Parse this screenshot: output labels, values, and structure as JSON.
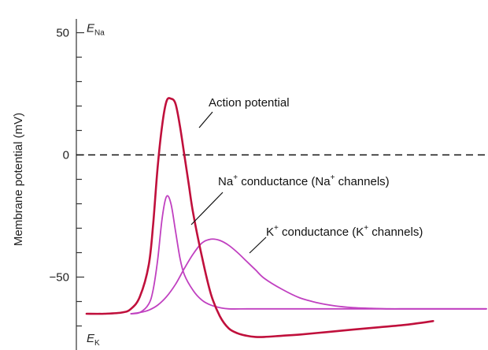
{
  "chart_data": {
    "type": "line",
    "title": "",
    "xlabel": "",
    "ylabel": "Membrane potential (mV)",
    "ylim": [
      -75,
      55
    ],
    "xlim": [
      0,
      4.5
    ],
    "y_ticks": [
      50,
      0,
      -50
    ],
    "y_tick_labels": [
      "50",
      "0",
      "−50"
    ],
    "grid": false,
    "x_axis_shown": false,
    "reference_levels": [
      {
        "id": "ENa",
        "symbol": "E",
        "subscript": "Na",
        "y": 52
      },
      {
        "id": "EK",
        "symbol": "E",
        "subscript": "K",
        "y": -75
      }
    ],
    "zero_line": {
      "y": 0,
      "style": "dashed"
    },
    "series": [
      {
        "name": "Action potential",
        "color": "#c0103c",
        "x": [
          0.0,
          0.2,
          0.4,
          0.5,
          0.6,
          0.7,
          0.75,
          0.8,
          0.85,
          0.9,
          0.95,
          1.0,
          1.05,
          1.1,
          1.15,
          1.2,
          1.3,
          1.4,
          1.5,
          1.6,
          1.7,
          1.8,
          1.9,
          2.0,
          2.2,
          2.4,
          2.7,
          3.0,
          3.3,
          3.6,
          3.9
        ],
        "values": [
          -65,
          -65,
          -64.5,
          -63,
          -58,
          -45,
          -28,
          -5,
          12,
          22,
          23,
          21,
          12,
          0,
          -12,
          -24,
          -42,
          -57,
          -66,
          -71,
          -73,
          -74,
          -74.5,
          -74.5,
          -74,
          -73.5,
          -72.5,
          -71.5,
          -70.5,
          -69.5,
          -68
        ]
      },
      {
        "name": "Na⁺ conductance (Na⁺ channels)",
        "color": "#c040c0",
        "x": [
          0.5,
          0.6,
          0.7,
          0.75,
          0.8,
          0.85,
          0.9,
          0.95,
          1.0,
          1.05,
          1.1,
          1.2,
          1.3,
          1.4,
          1.5,
          1.6,
          1.8,
          2.0,
          2.5,
          3.0,
          3.5,
          4.0,
          4.5
        ],
        "values": [
          -65,
          -64.5,
          -61,
          -55,
          -43,
          -26,
          -17,
          -20,
          -31,
          -42,
          -49,
          -55.5,
          -59.5,
          -61.5,
          -62.5,
          -63,
          -63,
          -63,
          -63,
          -63,
          -63,
          -63,
          -63
        ]
      },
      {
        "name": "K⁺ conductance (K⁺ channels)",
        "color": "#c040c0",
        "x": [
          0.5,
          0.6,
          0.7,
          0.8,
          0.9,
          1.0,
          1.1,
          1.2,
          1.3,
          1.4,
          1.5,
          1.6,
          1.7,
          1.8,
          1.9,
          2.0,
          2.2,
          2.4,
          2.6,
          2.8,
          3.0,
          3.2,
          3.4,
          3.6,
          3.8,
          4.0,
          4.5
        ],
        "values": [
          -65,
          -64.5,
          -63.5,
          -61.5,
          -58,
          -53,
          -46.5,
          -40.5,
          -36,
          -34.5,
          -35,
          -37,
          -40,
          -43.5,
          -47,
          -50.5,
          -55,
          -58.5,
          -60.5,
          -61.8,
          -62.5,
          -62.8,
          -63,
          -63,
          -63,
          -63,
          -63
        ]
      }
    ],
    "annotations": [
      {
        "id": "ap",
        "text_parts": [
          {
            "t": "Action potential"
          }
        ],
        "series": 0
      },
      {
        "id": "na",
        "text_parts": [
          {
            "t": "Na"
          },
          {
            "t": "+",
            "sup": true
          },
          {
            "t": " conductance (Na"
          },
          {
            "t": "+",
            "sup": true
          },
          {
            "t": " channels)"
          }
        ],
        "series": 1
      },
      {
        "id": "k",
        "text_parts": [
          {
            "t": "K"
          },
          {
            "t": "+",
            "sup": true
          },
          {
            "t": " conductance (K"
          },
          {
            "t": "+",
            "sup": true
          },
          {
            "t": " channels)"
          }
        ],
        "series": 2
      }
    ]
  }
}
